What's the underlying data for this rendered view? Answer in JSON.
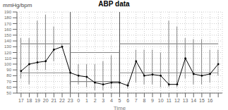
{
  "chart_data": {
    "type": "line",
    "title": "ABP data",
    "xlabel": "Time",
    "ylabel": "mmHg/bpm",
    "categories": [
      "17",
      "18",
      "19",
      "20",
      "21",
      "22",
      "23",
      "0",
      "1",
      "2",
      "3",
      "4",
      "5",
      "6",
      "7",
      "8",
      "9",
      "10",
      "11",
      "12",
      "13",
      "14",
      "15",
      "16",
      null
    ],
    "values": [
      88,
      100,
      103,
      105,
      125,
      130,
      85,
      80,
      78,
      68,
      65,
      68,
      68,
      63,
      105,
      80,
      82,
      80,
      65,
      65,
      110,
      83,
      80,
      83,
      100
    ],
    "upper": [
      145,
      145,
      175,
      185,
      165,
      135,
      130,
      100,
      100,
      100,
      105,
      115,
      125,
      68,
      125,
      125,
      125,
      120,
      175,
      165,
      145,
      143,
      143,
      125,
      125
    ],
    "lower": [
      75,
      65,
      90,
      90,
      105,
      130,
      65,
      65,
      60,
      55,
      55,
      58,
      65,
      58,
      68,
      65,
      65,
      60,
      60,
      60,
      75,
      65,
      65,
      68,
      80
    ],
    "day_limits": [
      135,
      85
    ],
    "night_limits": [
      120,
      70
    ],
    "night": [
      "23",
      "5"
    ],
    "color": "#000000",
    "marker": "circle",
    "ylim": [
      50,
      190
    ],
    "yticks": [
      50,
      60,
      70,
      80,
      90,
      100,
      110,
      120,
      130,
      140,
      150,
      160,
      170,
      180,
      190
    ],
    "grid": true
  }
}
